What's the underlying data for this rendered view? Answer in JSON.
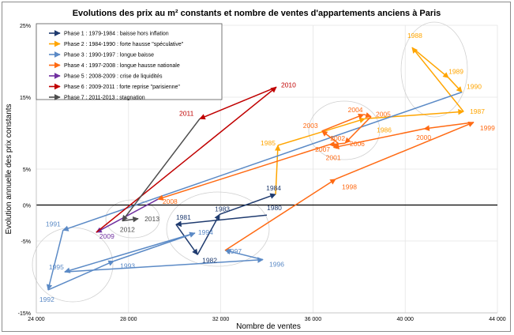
{
  "chart_data": {
    "type": "line",
    "title": "Evolutions des prix au m² constants et nombre de ventes d'appartements anciens à Paris",
    "xlabel": "Nombre de ventes",
    "ylabel": "Evolution annuelle des prix constants",
    "xlim": [
      24000,
      44000
    ],
    "ylim": [
      -15,
      25
    ],
    "x_ticks": [
      "24 000",
      "28 000",
      "32 000",
      "36 000",
      "40 000",
      "44 000"
    ],
    "y_ticks": [
      "25%",
      "15%",
      "5%",
      "0%",
      "-5%",
      "-15%"
    ],
    "grid": true,
    "legend_position": "top-left",
    "series": [
      {
        "name": "Phase 1 : 1979-1984 : baisse hors inflation",
        "color": "#1f3b6f",
        "points": [
          {
            "year": "1980",
            "x": 34000,
            "y": -1.4
          },
          {
            "year": "1981",
            "x": 30060,
            "y": -2.7
          },
          {
            "year": "1982",
            "x": 30990,
            "y": -6.9
          },
          {
            "year": "1983",
            "x": 31950,
            "y": -1.3
          },
          {
            "year": "1984",
            "x": 34380,
            "y": 1.5
          }
        ]
      },
      {
        "name": "Phase 2 : 1984-1990 : forte hausse \"spéculative\"",
        "color": "#ffa500",
        "points": [
          {
            "year": "1985",
            "x": 34480,
            "y": 8.3
          },
          {
            "year": "1986",
            "x": 38250,
            "y": 12.0
          },
          {
            "year": "1987",
            "x": 42530,
            "y": 13.0
          },
          {
            "year": "1988",
            "x": 40300,
            "y": 21.9
          },
          {
            "year": "1989",
            "x": 41880,
            "y": 17.7
          },
          {
            "year": "1990",
            "x": 42460,
            "y": 15.7
          }
        ]
      },
      {
        "name": "Phase 3 : 1990-1997 : longue baisse",
        "color": "#5b8ac6",
        "points": [
          {
            "year": "1991",
            "x": 25160,
            "y": -3.5
          },
          {
            "year": "1992",
            "x": 24510,
            "y": -11.8
          },
          {
            "year": "1993",
            "x": 27360,
            "y": -7.8
          },
          {
            "year": "1994",
            "x": 30880,
            "y": -3.9
          },
          {
            "year": "1995",
            "x": 25230,
            "y": -9.3
          },
          {
            "year": "1996",
            "x": 33830,
            "y": -7.6
          },
          {
            "year": "1997",
            "x": 32190,
            "y": -6.3
          }
        ]
      },
      {
        "name": "Phase 4 : 1997-2008 : longue hausse nationale",
        "color": "#ff6a13",
        "points": [
          {
            "year": "1998",
            "x": 36980,
            "y": 3.6
          },
          {
            "year": "1999",
            "x": 42970,
            "y": 11.5
          },
          {
            "year": "2000",
            "x": 40820,
            "y": 10.6
          },
          {
            "year": "2001",
            "x": 36900,
            "y": 8.0
          },
          {
            "year": "2002",
            "x": 37090,
            "y": 8.6
          },
          {
            "year": "2003",
            "x": 36390,
            "y": 10.3
          },
          {
            "year": "2004",
            "x": 38200,
            "y": 12.6
          },
          {
            "year": "2005",
            "x": 38520,
            "y": 12.3
          },
          {
            "year": "2006",
            "x": 37390,
            "y": 8.6
          },
          {
            "year": "2007",
            "x": 36710,
            "y": 8.4
          },
          {
            "year": "2008",
            "x": 29270,
            "y": 0.8
          }
        ]
      },
      {
        "name": "Phase 5 : 2008-2009 : crise de liquidités",
        "color": "#7030a0",
        "points": [
          {
            "year": "2009",
            "x": 26600,
            "y": -3.8
          }
        ]
      },
      {
        "name": "Phase 6 : 2009-2011 : forte reprise \"parisienne\"",
        "color": "#c00000",
        "points": [
          {
            "year": "2010",
            "x": 34410,
            "y": 16.4
          },
          {
            "year": "2011",
            "x": 31090,
            "y": 12.0
          }
        ]
      },
      {
        "name": "Phase 7 : 2011-2013 : stagnation",
        "color": "#4d4d4d",
        "points": [
          {
            "year": "2012",
            "x": 27730,
            "y": -2.2
          },
          {
            "year": "2013",
            "x": 28420,
            "y": -1.9
          }
        ]
      }
    ]
  }
}
